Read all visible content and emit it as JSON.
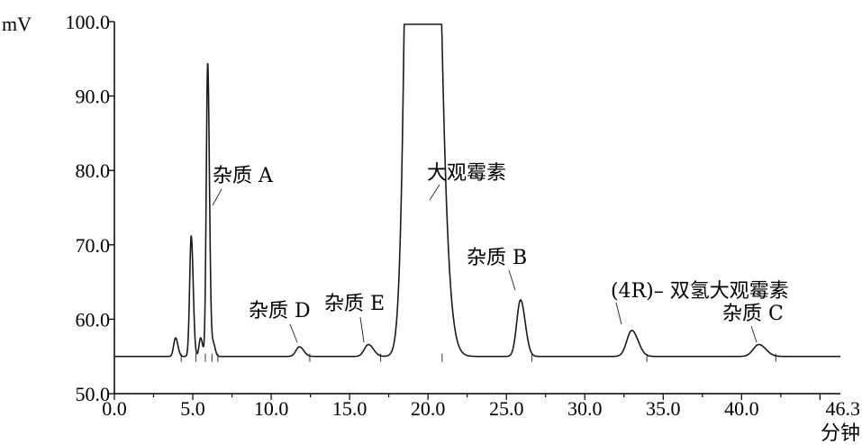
{
  "chart_data": {
    "type": "line",
    "title": "",
    "ylabel": "mV",
    "xlabel": "分钟",
    "xlim": [
      0.0,
      46.3
    ],
    "ylim": [
      50.0,
      100.0
    ],
    "grid": false,
    "x_ticks": [
      "0.0",
      "5.0",
      "10.0",
      "15.0",
      "20.0",
      "25.0",
      "30.0",
      "35.0",
      "40.0"
    ],
    "x_end_label": "46.3",
    "y_ticks": [
      "50.0",
      "60.0",
      "70.0",
      "80.0",
      "90.0",
      "100.0"
    ],
    "baseline": 55.0,
    "peaks": [
      {
        "x": 3.9,
        "height": 57.5,
        "width": 0.12
      },
      {
        "x": 4.9,
        "height": 71.2,
        "width": 0.1
      },
      {
        "x": 5.5,
        "height": 57.5,
        "width": 0.1
      },
      {
        "x": 5.95,
        "height": 94.5,
        "width": 0.09
      },
      {
        "x": 6.3,
        "height": 56.8,
        "width": 0.1
      },
      {
        "x": 11.8,
        "height": 56.3,
        "width": 0.22
      },
      {
        "x": 16.2,
        "height": 56.6,
        "width": 0.26
      },
      {
        "x": 19.4,
        "height": 300.0,
        "width": 0.5
      },
      {
        "x": 25.9,
        "height": 62.6,
        "width": 0.24
      },
      {
        "x": 33.0,
        "height": 58.5,
        "width": 0.32
      },
      {
        "x": 41.1,
        "height": 56.6,
        "width": 0.36
      }
    ],
    "annotations": [
      {
        "label": "杂质 A",
        "x": 5.95
      },
      {
        "label": "杂质 D",
        "x": 11.8
      },
      {
        "label": "杂质 E",
        "x": 16.2
      },
      {
        "label": "大观霉素",
        "x": 19.4
      },
      {
        "label": "杂质 B",
        "x": 25.9
      },
      {
        "label": "(4R)– 双氢大观霉素",
        "x": 33.0
      },
      {
        "label": "杂质 C",
        "x": 41.1
      }
    ]
  }
}
